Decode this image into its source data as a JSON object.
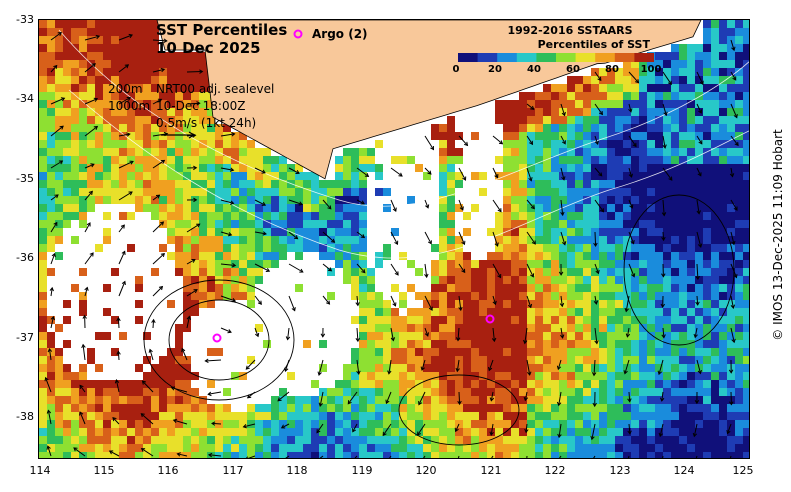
{
  "title": {
    "line1": "SST Percentiles",
    "line2": "10 Dec 2025"
  },
  "argo": {
    "label": "Argo (2)",
    "marker_color": "#ff00ff"
  },
  "info": {
    "depth_200": "200m",
    "depth_1000": "1000m",
    "product": "NRT00 adj. sealevel",
    "timestamp": "10-Dec 18:00Z",
    "scale": "0.5m/s (1kt 24h)"
  },
  "colorbar": {
    "title": "1992-2016 SSTAARS",
    "subtitle": "Percentiles of SST",
    "ticks": [
      "0",
      "20",
      "40",
      "60",
      "80",
      "100"
    ],
    "colors": [
      "#10107a",
      "#1e3cb4",
      "#1a8cdc",
      "#28c8c8",
      "#2ebd5a",
      "#8ee032",
      "#e8e02a",
      "#f0a020",
      "#d8601a",
      "#a82010"
    ]
  },
  "axes": {
    "lat_labels": [
      "-33",
      "-34",
      "-35",
      "-36",
      "-37",
      "-38"
    ],
    "lon_labels": [
      "114",
      "115",
      "116",
      "117",
      "118",
      "119",
      "120",
      "121",
      "122",
      "123",
      "124",
      "125"
    ]
  },
  "colors": {
    "land": "#f8c89a",
    "frame": "#000000"
  },
  "credit": "© IMOS 13-Dec-2025 11:09 Hobart"
}
